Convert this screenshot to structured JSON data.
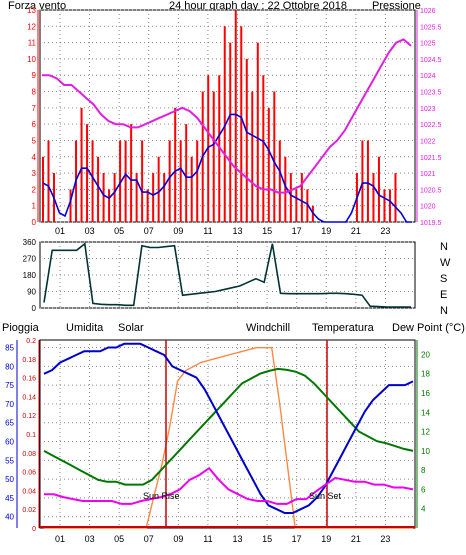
{
  "colors": {
    "wind": "#ff0000",
    "wind_avg": "#0000dd",
    "pressure": "#e020e0",
    "direction": "#003333",
    "humidity": "#0000cc",
    "solar": "#ff8844",
    "temperature": "#007700",
    "windchill": "#336666",
    "dewpoint": "#ee00ee",
    "rain": "#cc0000",
    "grid": "#888888",
    "sun_marker": "#cc0000"
  },
  "header": {
    "left_label": "Forza vento",
    "title": "24 hour graph day : 22 Ottobre 2018",
    "right_label": "Pressione"
  },
  "compass": {
    "labels": [
      "N",
      "W",
      "S",
      "E",
      "N"
    ]
  },
  "bottom_header": {
    "rain": "Pioggia",
    "humidity": "Umidita",
    "solar": "Solar",
    "windchill": "Windchill",
    "temperature": "Temperatura",
    "dewpoint": "Dew Point (°C)"
  },
  "sun_labels": {
    "rise": "Sun Rise",
    "set": "Sun Set"
  },
  "chart_data": [
    {
      "type": "line",
      "x_ticks": [
        "01",
        "03",
        "05",
        "07",
        "09",
        "11",
        "13",
        "15",
        "17",
        "19",
        "21",
        "23"
      ],
      "y_left_ticks": [
        "0",
        "1",
        "2",
        "3",
        "4",
        "5",
        "6",
        "7",
        "8",
        "9",
        "10",
        "11",
        "12",
        "13"
      ],
      "y_left_range": [
        0,
        13
      ],
      "y_right_ticks": [
        "1019.5",
        "1020",
        "1020.5",
        "1021",
        "1021.5",
        "1022",
        "1022.5",
        "1023",
        "1023.5",
        "1024",
        "1024.5",
        "1025",
        "1025.5",
        "1026"
      ],
      "y_right_range": [
        1019.5,
        1026
      ],
      "series": [
        {
          "name": "Forza vento",
          "values": [
            4,
            5,
            3,
            0,
            0,
            2,
            5,
            7,
            6,
            5,
            4,
            3,
            2,
            3,
            5,
            5,
            6,
            3,
            5,
            2,
            3,
            4,
            3,
            5,
            7,
            5,
            6,
            4,
            5,
            8,
            9,
            8,
            9,
            12,
            11,
            13,
            12,
            10,
            8,
            11,
            9,
            7,
            8,
            5,
            4,
            3,
            2,
            3,
            2,
            1,
            0,
            0,
            0,
            0,
            0,
            0,
            0,
            3,
            5,
            5,
            3,
            4,
            2,
            2,
            3,
            0,
            0,
            0
          ]
        },
        {
          "name": "Pressione",
          "values": [
            1024,
            1024,
            1023.9,
            1023.7,
            1023.7,
            1023.5,
            1023.3,
            1023.1,
            1022.8,
            1022.6,
            1022.5,
            1022.5,
            1022.4,
            1022.4,
            1022.5,
            1022.6,
            1022.7,
            1022.8,
            1022.9,
            1023,
            1022.9,
            1022.7,
            1022.4,
            1022.1,
            1021.8,
            1021.5,
            1021.2,
            1021,
            1020.8,
            1020.6,
            1020.5,
            1020.5,
            1020.4,
            1020.4,
            1020.5,
            1020.6,
            1020.9,
            1021.2,
            1021.5,
            1021.8,
            1022,
            1022.3,
            1022.7,
            1023.1,
            1023.5,
            1023.9,
            1024.3,
            1024.7,
            1025,
            1025.1,
            1024.9
          ]
        }
      ]
    },
    {
      "type": "line",
      "x_ticks": [
        "01",
        "03",
        "05",
        "07",
        "09",
        "11",
        "13",
        "15",
        "17",
        "19",
        "21",
        "23"
      ],
      "y_ticks": [
        "0",
        "90",
        "180",
        "270",
        "360"
      ],
      "y_range": [
        0,
        360
      ],
      "series": [
        {
          "values": [
            30,
            315,
            315,
            315,
            315,
            350,
            25,
            20,
            18,
            18,
            15,
            15,
            340,
            330,
            330,
            335,
            340,
            70,
            75,
            80,
            85,
            90,
            100,
            110,
            120,
            140,
            160,
            140,
            350,
            80,
            78,
            78,
            78,
            78,
            78,
            80,
            80,
            78,
            75,
            70,
            10,
            8,
            5,
            5,
            5,
            5
          ]
        }
      ]
    },
    {
      "type": "line",
      "x_ticks": [
        "01",
        "03",
        "05",
        "07",
        "09",
        "11",
        "13",
        "15",
        "17",
        "19",
        "21",
        "23"
      ],
      "y_left_outer_ticks": [
        "40",
        "45",
        "50",
        "55",
        "60",
        "65",
        "70",
        "75",
        "80",
        "85"
      ],
      "y_left_outer_range": [
        37,
        87
      ],
      "y_left_inner_ticks": [
        "0",
        "0.02",
        "0.04",
        "0.06",
        "0.08",
        "0.1",
        "0.12",
        "0.14",
        "0.16",
        "0.18",
        "0.2"
      ],
      "y_left_inner_range": [
        0,
        0.2
      ],
      "y_right_ticks": [
        "4",
        "6",
        "8",
        "10",
        "12",
        "14",
        "16",
        "18",
        "20"
      ],
      "y_right_range": [
        2,
        21.5
      ],
      "series": [
        {
          "name": "Umidita",
          "values": [
            78,
            79,
            81,
            82,
            83,
            84,
            84,
            84,
            85,
            85,
            86,
            86,
            86,
            85,
            84,
            83,
            80,
            79,
            78,
            77,
            74,
            70,
            66,
            62,
            58,
            54,
            50,
            46,
            43,
            42,
            41,
            41,
            42,
            43,
            45,
            48,
            52,
            56,
            60,
            64,
            68,
            71,
            73,
            75,
            75,
            75,
            76
          ]
        },
        {
          "name": "Temperatura",
          "values": [
            10,
            9.5,
            9,
            8.5,
            8,
            7.5,
            7,
            6.8,
            6.8,
            6.5,
            6.5,
            6.5,
            7,
            8,
            9,
            10,
            11,
            12,
            13,
            14,
            15,
            16,
            17,
            17.5,
            18,
            18.3,
            18.5,
            18.4,
            18.2,
            17.8,
            17,
            16,
            15,
            14,
            13,
            12,
            11.5,
            11,
            10.8,
            10.5,
            10.2,
            10
          ]
        },
        {
          "name": "Dew Point",
          "values": [
            5.5,
            5.5,
            5.2,
            5,
            4.8,
            4.8,
            4.8,
            4.8,
            4.5,
            4.5,
            4.8,
            5,
            5.2,
            5.5,
            6,
            7,
            7.5,
            8.2,
            7,
            6,
            5.5,
            5,
            4.8,
            4.8,
            4.5,
            4.5,
            5,
            5,
            5.8,
            6.5,
            7.2,
            7,
            6.8,
            6.8,
            6.5,
            6.5,
            6.2,
            6.2,
            6
          ]
        },
        {
          "name": "Solar",
          "values": [
            0,
            0,
            0,
            0,
            0,
            0,
            0,
            0,
            0,
            0,
            0,
            0,
            0,
            0,
            150,
            300,
            480,
            700,
            750,
            770,
            790,
            800,
            810,
            820,
            830,
            840,
            850,
            860,
            860,
            860,
            600,
            300,
            0,
            0,
            0,
            0,
            0,
            0,
            0,
            0,
            0,
            0,
            0,
            0,
            0,
            0,
            0,
            0
          ]
        },
        {
          "name": "Pioggia",
          "values": [
            0,
            0,
            0,
            0,
            0,
            0,
            0,
            0,
            0,
            0,
            0,
            0,
            0,
            0,
            0,
            0,
            0,
            0,
            0,
            0,
            0,
            0,
            0,
            0,
            0,
            0,
            0,
            0,
            0,
            0,
            0,
            0,
            0,
            0,
            0,
            0,
            0,
            0,
            0,
            0,
            0,
            0,
            0,
            0,
            0,
            0,
            0,
            0
          ]
        }
      ]
    }
  ]
}
